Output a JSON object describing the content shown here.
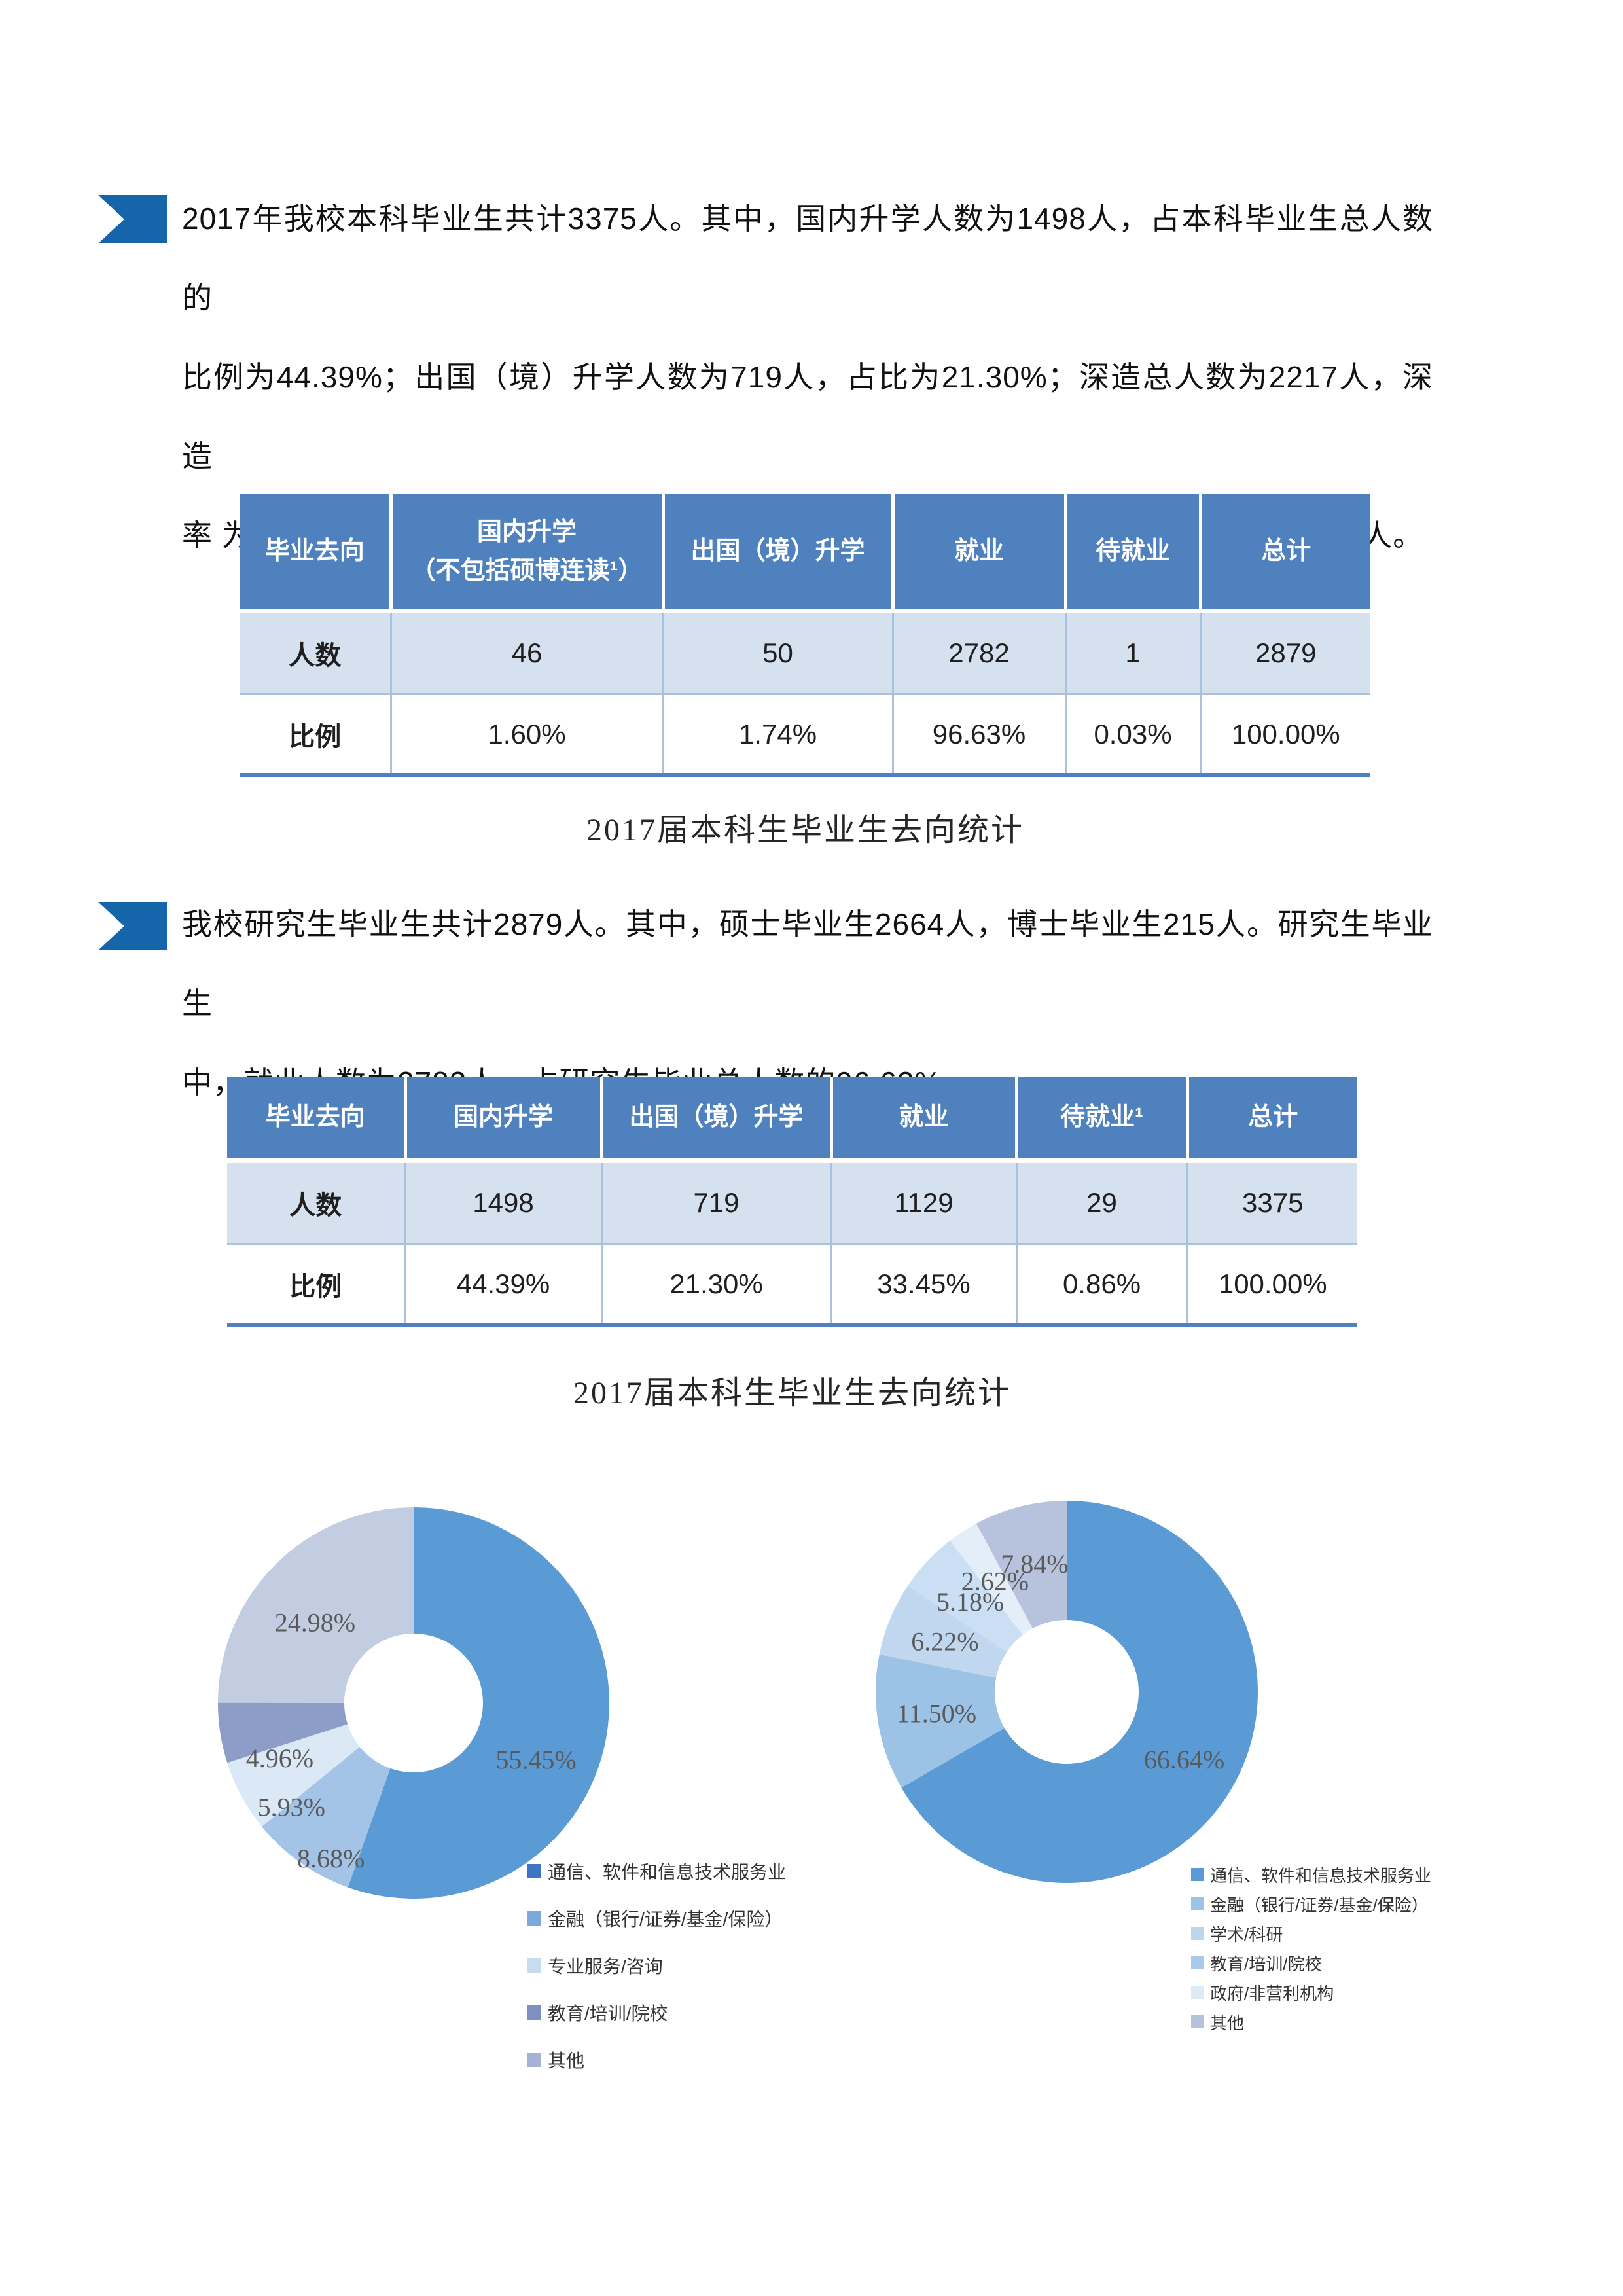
{
  "page": {
    "bullet_color": "#1565ab",
    "paragraph1_lines": [
      "2017年我校本科毕业生共计3375人。其中，国内升学人数为1498人，占本科毕业生总人数的",
      "比例为44.39%；出国（境）升学人数为719人，占比为21.30%；深造总人数为2217人，深造",
      "率 为65.69%。就业人数为1129人，占比为33.45%。志愿服务西部15人,参军（入伍）7人。"
    ],
    "paragraph2_lines": [
      "我校研究生毕业生共计2879人。其中，硕士毕业生2664人，博士毕业生215人。研究生毕业生",
      "中，就业人数为2782人，占研究生毕业总人数的96.63%。"
    ],
    "caption1": "2017届本科生毕业生去向统计",
    "caption2": "2017届本科生毕业生去向统计"
  },
  "tables": [
    {
      "headers": [
        "毕业去向",
        "国内升学\n（不包括硕博连读¹）",
        "出国（境）升学",
        "就业",
        "待就业",
        "总计"
      ],
      "rows": [
        {
          "label": "人数",
          "values": [
            "46",
            "50",
            "2782",
            "1",
            "2879"
          ]
        },
        {
          "label": "比例",
          "values": [
            "1.60%",
            "1.74%",
            "96.63%",
            "0.03%",
            "100.00%"
          ]
        }
      ]
    },
    {
      "headers": [
        "毕业去向",
        "国内升学",
        "出国（境）升学",
        "就业",
        "待就业¹",
        "总计"
      ],
      "rows": [
        {
          "label": "人数",
          "values": [
            "1498",
            "719",
            "1129",
            "29",
            "3375"
          ]
        },
        {
          "label": "比例",
          "values": [
            "44.39%",
            "21.30%",
            "33.45%",
            "0.86%",
            "100.00%"
          ]
        }
      ]
    }
  ],
  "chart_data": [
    {
      "type": "pie",
      "subtype": "donut",
      "title": "",
      "categories": [
        "通信、软件和信息技术服务业",
        "金融（银行/证券/基金/保险）",
        "专业服务/咨询",
        "教育/培训/院校",
        "其他"
      ],
      "values": [
        55.45,
        8.68,
        5.93,
        4.96,
        24.98
      ],
      "labels": [
        "55.45%",
        "8.68%",
        "5.93%",
        "4.96%",
        "24.98%"
      ],
      "slice_colors": [
        "#5b9bd5",
        "#a3c4e7",
        "#dbe8f5",
        "#8c9ec7",
        "#c3cde1"
      ],
      "label_pos": [
        {
          "angle": 115.0,
          "r": 0.69
        },
        {
          "angle": 208.0,
          "r": 0.9
        },
        {
          "angle": 229.6,
          "r": 0.82
        },
        {
          "angle": 247.6,
          "r": 0.74
        },
        {
          "angle": 309.2,
          "r": 0.65
        }
      ],
      "legend": [
        {
          "label": "通信、软件和信息技术服务业",
          "color": "#3e74c4"
        },
        {
          "label": "金融（银行/证券/基金/保险）",
          "color": "#7ca9dc"
        },
        {
          "label": "专业服务/咨询",
          "color": "#c8dcf0"
        },
        {
          "label": "教育/培训/院校",
          "color": "#7d90c0"
        },
        {
          "label": "其他",
          "color": "#a3b2d6"
        }
      ],
      "legend_position": "below-right",
      "label_color": "#595959"
    },
    {
      "type": "pie",
      "subtype": "donut",
      "title": "",
      "categories": [
        "通信、软件和信息技术服务业",
        "金融（银行/证券/基金/保险）",
        "学术/科研",
        "教育/培训/院校",
        "政府/非营利机构",
        "其他"
      ],
      "values": [
        66.64,
        11.5,
        6.22,
        5.18,
        2.62,
        7.84
      ],
      "labels": [
        "66.64%",
        "11.50%",
        "6.22%",
        "5.18%",
        "2.62%",
        "7.84%"
      ],
      "slice_colors": [
        "#5b9bd5",
        "#9cc2e5",
        "#c0d7ef",
        "#cadef4",
        "#e4eef9",
        "#b7c3dc"
      ],
      "label_pos": [
        {
          "angle": 119.95,
          "r": 0.71
        },
        {
          "angle": 260.6,
          "r": 0.69
        },
        {
          "angle": 292.5,
          "r": 0.69
        },
        {
          "angle": 313.02,
          "r": 0.69
        },
        {
          "angle": 327.06,
          "r": 0.69
        },
        {
          "angle": 345.89,
          "r": 0.69
        }
      ],
      "legend": [
        {
          "label": "通信、软件和信息技术服务业",
          "color": "#5b9bd5"
        },
        {
          "label": "金融（银行/证券/基金/保险）",
          "color": "#9cc2e5"
        },
        {
          "label": "学术/科研",
          "color": "#bcd6ee"
        },
        {
          "label": "教育/培训/院校",
          "color": "#a9c9e9"
        },
        {
          "label": "政府/非营利机构",
          "color": "#dde9f6"
        },
        {
          "label": "其他",
          "color": "#b5c2db"
        }
      ],
      "legend_position": "below-right",
      "label_color": "#595959"
    }
  ],
  "colors": {
    "bullet": "#1565ab",
    "table_header_bg": "#4e81bd",
    "table_alt_row_bg": "#d6e1f0",
    "table_grid": "#aac1de",
    "table_bottom_border": "#4e81bd",
    "donut_label": "#595959",
    "body_text": "#111111"
  }
}
